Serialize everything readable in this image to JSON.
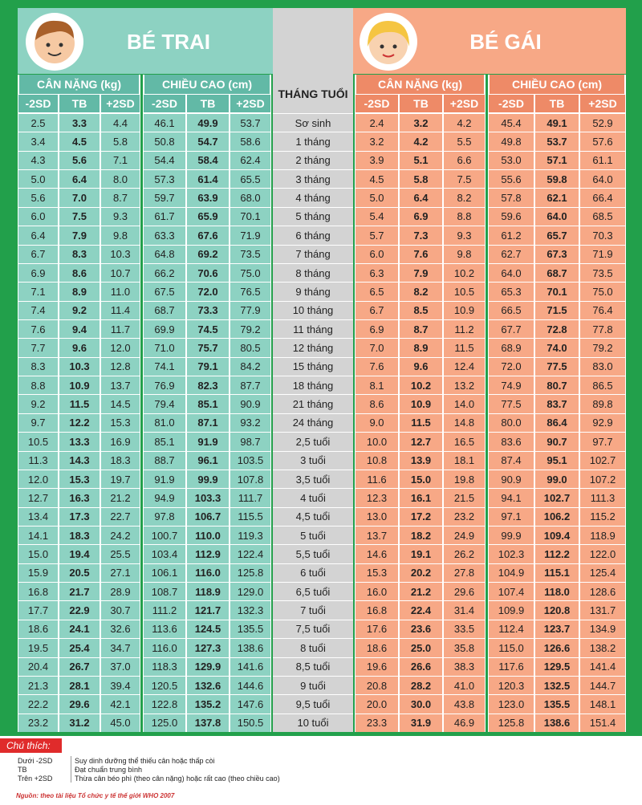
{
  "header": {
    "boy_title": "BÉ TRAI",
    "girl_title": "BÉ GÁI",
    "age_title": "THÁNG TUỔI"
  },
  "groups": [
    {
      "label": "CÂN NẶNG (kg)",
      "columns": [
        "-2SD",
        "TB",
        "+2SD"
      ]
    },
    {
      "label": "CHIỀU CAO (cm)",
      "columns": [
        "-2SD",
        "TB",
        "+2SD"
      ]
    },
    {
      "label": "CÂN NẶNG (kg)",
      "columns": [
        "-2SD",
        "TB",
        "+2SD"
      ]
    },
    {
      "label": "CHIỀU CAO (cm)",
      "columns": [
        "-2SD",
        "TB",
        "+2SD"
      ]
    }
  ],
  "rows": [
    {
      "age": "Sơ sinh",
      "values": [
        "2.5",
        "3.3",
        "4.4",
        "46.1",
        "49.9",
        "53.7",
        "2.4",
        "3.2",
        "4.2",
        "45.4",
        "49.1",
        "52.9"
      ]
    },
    {
      "age": "1 tháng",
      "values": [
        "3.4",
        "4.5",
        "5.8",
        "50.8",
        "54.7",
        "58.6",
        "3.2",
        "4.2",
        "5.5",
        "49.8",
        "53.7",
        "57.6"
      ]
    },
    {
      "age": "2 tháng",
      "values": [
        "4.3",
        "5.6",
        "7.1",
        "54.4",
        "58.4",
        "62.4",
        "3.9",
        "5.1",
        "6.6",
        "53.0",
        "57.1",
        "61.1"
      ]
    },
    {
      "age": "3 tháng",
      "values": [
        "5.0",
        "6.4",
        "8.0",
        "57.3",
        "61.4",
        "65.5",
        "4.5",
        "5.8",
        "7.5",
        "55.6",
        "59.8",
        "64.0"
      ]
    },
    {
      "age": "4 tháng",
      "values": [
        "5.6",
        "7.0",
        "8.7",
        "59.7",
        "63.9",
        "68.0",
        "5.0",
        "6.4",
        "8.2",
        "57.8",
        "62.1",
        "66.4"
      ]
    },
    {
      "age": "5 tháng",
      "values": [
        "6.0",
        "7.5",
        "9.3",
        "61.7",
        "65.9",
        "70.1",
        "5.4",
        "6.9",
        "8.8",
        "59.6",
        "64.0",
        "68.5"
      ]
    },
    {
      "age": "6 tháng",
      "values": [
        "6.4",
        "7.9",
        "9.8",
        "63.3",
        "67.6",
        "71.9",
        "5.7",
        "7.3",
        "9.3",
        "61.2",
        "65.7",
        "70.3"
      ]
    },
    {
      "age": "7 tháng",
      "values": [
        "6.7",
        "8.3",
        "10.3",
        "64.8",
        "69.2",
        "73.5",
        "6.0",
        "7.6",
        "9.8",
        "62.7",
        "67.3",
        "71.9"
      ]
    },
    {
      "age": "8 tháng",
      "values": [
        "6.9",
        "8.6",
        "10.7",
        "66.2",
        "70.6",
        "75.0",
        "6.3",
        "7.9",
        "10.2",
        "64.0",
        "68.7",
        "73.5"
      ]
    },
    {
      "age": "9 tháng",
      "values": [
        "7.1",
        "8.9",
        "11.0",
        "67.5",
        "72.0",
        "76.5",
        "6.5",
        "8.2",
        "10.5",
        "65.3",
        "70.1",
        "75.0"
      ]
    },
    {
      "age": "10 tháng",
      "values": [
        "7.4",
        "9.2",
        "11.4",
        "68.7",
        "73.3",
        "77.9",
        "6.7",
        "8.5",
        "10.9",
        "66.5",
        "71.5",
        "76.4"
      ]
    },
    {
      "age": "11 tháng",
      "values": [
        "7.6",
        "9.4",
        "11.7",
        "69.9",
        "74.5",
        "79.2",
        "6.9",
        "8.7",
        "11.2",
        "67.7",
        "72.8",
        "77.8"
      ]
    },
    {
      "age": "12 tháng",
      "values": [
        "7.7",
        "9.6",
        "12.0",
        "71.0",
        "75.7",
        "80.5",
        "7.0",
        "8.9",
        "11.5",
        "68.9",
        "74.0",
        "79.2"
      ]
    },
    {
      "age": "15 tháng",
      "values": [
        "8.3",
        "10.3",
        "12.8",
        "74.1",
        "79.1",
        "84.2",
        "7.6",
        "9.6",
        "12.4",
        "72.0",
        "77.5",
        "83.0"
      ]
    },
    {
      "age": "18 tháng",
      "values": [
        "8.8",
        "10.9",
        "13.7",
        "76.9",
        "82.3",
        "87.7",
        "8.1",
        "10.2",
        "13.2",
        "74.9",
        "80.7",
        "86.5"
      ]
    },
    {
      "age": "21 tháng",
      "values": [
        "9.2",
        "11.5",
        "14.5",
        "79.4",
        "85.1",
        "90.9",
        "8.6",
        "10.9",
        "14.0",
        "77.5",
        "83.7",
        "89.8"
      ]
    },
    {
      "age": "24 tháng",
      "values": [
        "9.7",
        "12.2",
        "15.3",
        "81.0",
        "87.1",
        "93.2",
        "9.0",
        "11.5",
        "14.8",
        "80.0",
        "86.4",
        "92.9"
      ]
    },
    {
      "age": "2,5 tuổi",
      "values": [
        "10.5",
        "13.3",
        "16.9",
        "85.1",
        "91.9",
        "98.7",
        "10.0",
        "12.7",
        "16.5",
        "83.6",
        "90.7",
        "97.7"
      ]
    },
    {
      "age": "3 tuổi",
      "values": [
        "11.3",
        "14.3",
        "18.3",
        "88.7",
        "96.1",
        "103.5",
        "10.8",
        "13.9",
        "18.1",
        "87.4",
        "95.1",
        "102.7"
      ]
    },
    {
      "age": "3,5 tuổi",
      "values": [
        "12.0",
        "15.3",
        "19.7",
        "91.9",
        "99.9",
        "107.8",
        "11.6",
        "15.0",
        "19.8",
        "90.9",
        "99.0",
        "107.2"
      ]
    },
    {
      "age": "4 tuổi",
      "values": [
        "12.7",
        "16.3",
        "21.2",
        "94.9",
        "103.3",
        "111.7",
        "12.3",
        "16.1",
        "21.5",
        "94.1",
        "102.7",
        "111.3"
      ]
    },
    {
      "age": "4,5 tuổi",
      "values": [
        "13.4",
        "17.3",
        "22.7",
        "97.8",
        "106.7",
        "115.5",
        "13.0",
        "17.2",
        "23.2",
        "97.1",
        "106.2",
        "115.2"
      ]
    },
    {
      "age": "5 tuổi",
      "values": [
        "14.1",
        "18.3",
        "24.2",
        "100.7",
        "110.0",
        "119.3",
        "13.7",
        "18.2",
        "24.9",
        "99.9",
        "109.4",
        "118.9"
      ]
    },
    {
      "age": "5,5 tuổi",
      "values": [
        "15.0",
        "19.4",
        "25.5",
        "103.4",
        "112.9",
        "122.4",
        "14.6",
        "19.1",
        "26.2",
        "102.3",
        "112.2",
        "122.0"
      ]
    },
    {
      "age": "6 tuổi",
      "values": [
        "15.9",
        "20.5",
        "27.1",
        "106.1",
        "116.0",
        "125.8",
        "15.3",
        "20.2",
        "27.8",
        "104.9",
        "115.1",
        "125.4"
      ]
    },
    {
      "age": "6,5 tuổi",
      "values": [
        "16.8",
        "21.7",
        "28.9",
        "108.7",
        "118.9",
        "129.0",
        "16.0",
        "21.2",
        "29.6",
        "107.4",
        "118.0",
        "128.6"
      ]
    },
    {
      "age": "7 tuổi",
      "values": [
        "17.7",
        "22.9",
        "30.7",
        "111.2",
        "121.7",
        "132.3",
        "16.8",
        "22.4",
        "31.4",
        "109.9",
        "120.8",
        "131.7"
      ]
    },
    {
      "age": "7,5 tuổi",
      "values": [
        "18.6",
        "24.1",
        "32.6",
        "113.6",
        "124.5",
        "135.5",
        "17.6",
        "23.6",
        "33.5",
        "112.4",
        "123.7",
        "134.9"
      ]
    },
    {
      "age": "8 tuổi",
      "values": [
        "19.5",
        "25.4",
        "34.7",
        "116.0",
        "127.3",
        "138.6",
        "18.6",
        "25.0",
        "35.8",
        "115.0",
        "126.6",
        "138.2"
      ]
    },
    {
      "age": "8,5 tuổi",
      "values": [
        "20.4",
        "26.7",
        "37.0",
        "118.3",
        "129.9",
        "141.6",
        "19.6",
        "26.6",
        "38.3",
        "117.6",
        "129.5",
        "141.4"
      ]
    },
    {
      "age": "9 tuổi",
      "values": [
        "21.3",
        "28.1",
        "39.4",
        "120.5",
        "132.6",
        "144.6",
        "20.8",
        "28.2",
        "41.0",
        "120.3",
        "132.5",
        "144.7"
      ]
    },
    {
      "age": "9,5 tuổi",
      "values": [
        "22.2",
        "29.6",
        "42.1",
        "122.8",
        "135.2",
        "147.6",
        "20.0",
        "30.0",
        "43.8",
        "123.0",
        "135.5",
        "148.1"
      ]
    },
    {
      "age": "10 tuổi",
      "values": [
        "23.2",
        "31.2",
        "45.0",
        "125.0",
        "137.8",
        "150.5",
        "23.3",
        "31.9",
        "46.9",
        "125.8",
        "138.6",
        "151.4"
      ]
    }
  ],
  "legend": {
    "title": "Chú thích:",
    "items": [
      {
        "term": "Dưới -2SD",
        "desc": "Suy dinh dưỡng thể thiếu cân hoặc thấp còi"
      },
      {
        "term": "TB",
        "desc": "Đạt chuẩn trung bình"
      },
      {
        "term": "Trên +2SD",
        "desc": "Thừa cân béo phì (theo cân nặng) hoặc rất cao (theo chiều cao)"
      }
    ],
    "source": "Nguồn: theo tài liệu Tổ chức y tế thế giới WHO 2007"
  }
}
